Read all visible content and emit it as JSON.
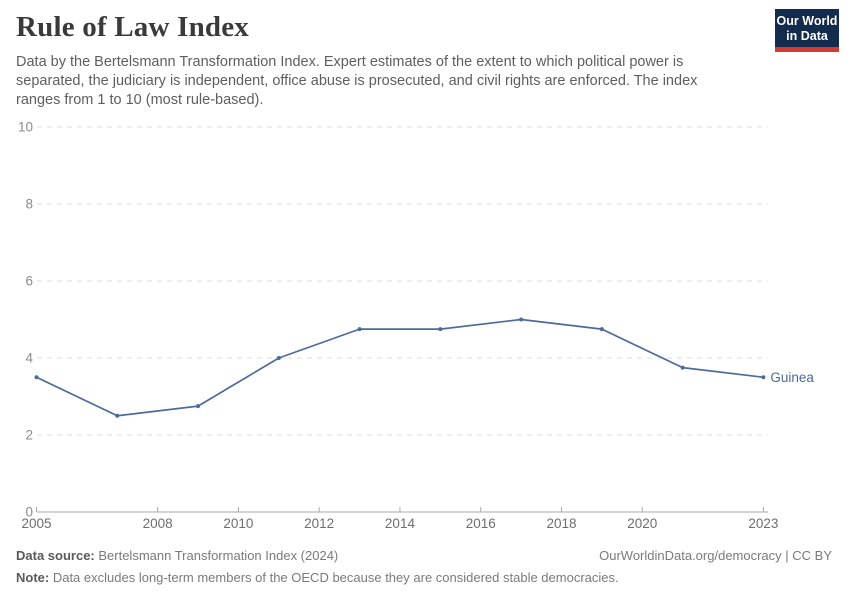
{
  "header": {
    "title": "Rule of Law Index",
    "subtitle_lines": [
      "Data by the Bertelsmann Transformation Index. Expert estimates of the extent to which political power is",
      "separated, the judiciary is independent, office abuse is prosecuted, and civil rights are enforced. The index",
      "ranges from 1 to 10 (most rule-based)."
    ],
    "logo": {
      "line1": "Our World",
      "line2": "in Data",
      "bg_color": "#132B4D",
      "accent_color": "#D13B31"
    }
  },
  "chart_data": {
    "type": "line",
    "title": "Rule of Law Index",
    "xlabel": "",
    "ylabel": "",
    "x_range": [
      2005,
      2023
    ],
    "y_range": [
      0,
      10
    ],
    "x_ticks": [
      2005,
      2008,
      2010,
      2012,
      2014,
      2016,
      2018,
      2020,
      2023
    ],
    "y_ticks": [
      0,
      2,
      4,
      6,
      8,
      10
    ],
    "grid": "horizontal-dashed",
    "grid_color": "#dcdcdc",
    "axis_color": "#a8a8a8",
    "y_tick_label_color": "#8b8b8b",
    "x_tick_label_color": "#6e6e6e",
    "legend_position": "end-of-line",
    "series": [
      {
        "name": "Guinea",
        "color": "#4C6A9C",
        "x": [
          2005,
          2007,
          2009,
          2011,
          2013,
          2015,
          2017,
          2019,
          2021,
          2023
        ],
        "values": [
          3.5,
          2.5,
          2.75,
          4,
          4.75,
          4.75,
          5,
          4.75,
          3.75,
          3.5
        ]
      }
    ]
  },
  "footer": {
    "source_label": "Data source:",
    "source_text": " Bertelsmann Transformation Index (2024)",
    "link_text": "OurWorldinData.org/democracy | CC BY",
    "note_label": "Note:",
    "note_text": " Data excludes long-term members of the OECD because they are considered stable democracies."
  }
}
